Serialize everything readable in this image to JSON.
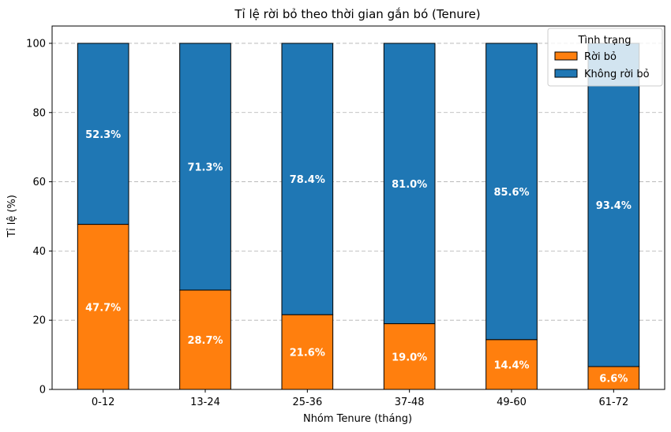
{
  "chart_data": {
    "type": "bar",
    "stacked": true,
    "title": "Tỉ lệ rời bỏ theo thời gian gắn bó (Tenure)",
    "xlabel": "Nhóm Tenure (tháng)",
    "ylabel": "Tỉ lệ (%)",
    "ylim": [
      0,
      105
    ],
    "yticks": [
      0,
      20,
      40,
      60,
      80,
      100
    ],
    "grid": "y-dashed",
    "categories": [
      "0-12",
      "13-24",
      "25-36",
      "37-48",
      "49-60",
      "61-72"
    ],
    "series": [
      {
        "name": "Rời bỏ",
        "color": "#ff7f0e",
        "values": [
          47.7,
          28.7,
          21.6,
          19.0,
          14.4,
          6.6
        ],
        "labels": [
          "47.7%",
          "28.7%",
          "21.6%",
          "19.0%",
          "14.4%",
          "6.6%"
        ]
      },
      {
        "name": "Không rời bỏ",
        "color": "#1f77b4",
        "values": [
          52.3,
          71.3,
          78.4,
          81.0,
          85.6,
          93.4
        ],
        "labels": [
          "52.3%",
          "71.3%",
          "78.4%",
          "81.0%",
          "85.6%",
          "93.4%"
        ]
      }
    ],
    "legend": {
      "title": "Tình trạng",
      "position": "top-right"
    }
  }
}
